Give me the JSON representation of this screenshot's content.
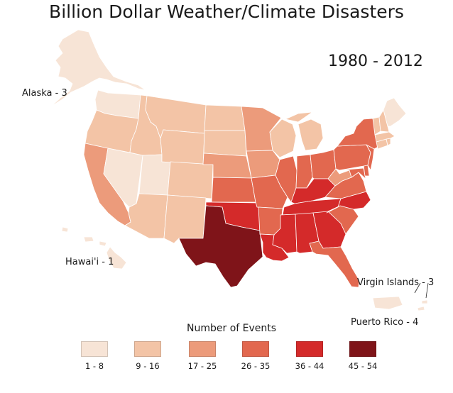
{
  "title": "Billion Dollar Weather/Climate Disasters",
  "period": "1980 - 2012",
  "callouts": {
    "alaska": "Alaska - 3",
    "hawaii": "Hawai'i - 1",
    "virgin_islands": "Virgin Islands - 3",
    "puerto_rico": "Puerto Rico - 4"
  },
  "legend": {
    "title": "Number of Events",
    "bins": [
      {
        "label": "1 - 8",
        "color": "#f7e4d6"
      },
      {
        "label": "9 - 16",
        "color": "#f3c4a6"
      },
      {
        "label": "17 - 25",
        "color": "#ec9b7b"
      },
      {
        "label": "26 - 35",
        "color": "#e2684f"
      },
      {
        "label": "36 - 44",
        "color": "#d42a2a"
      },
      {
        "label": "45 - 54",
        "color": "#7f1419"
      }
    ]
  },
  "state_bins": {
    "WA": 0,
    "OR": 1,
    "CA": 2,
    "NV": 0,
    "UT": 0,
    "ID": 1,
    "MT": 1,
    "WY": 1,
    "CO": 1,
    "AZ": 1,
    "NM": 1,
    "ND": 1,
    "SD": 1,
    "NE": 2,
    "KS": 3,
    "OK": 4,
    "TX": 5,
    "MN": 2,
    "IA": 2,
    "MO": 3,
    "AR": 3,
    "LA": 4,
    "WI": 1,
    "IL": 3,
    "MI": 1,
    "IN": 3,
    "OH": 3,
    "KY": 4,
    "TN": 4,
    "MS": 4,
    "AL": 4,
    "GA": 4,
    "FL": 3,
    "SC": 3,
    "NC": 4,
    "VA": 3,
    "WV": 2,
    "PA": 3,
    "NY": 3,
    "ME": 0,
    "NH": 1,
    "VT": 1,
    "MA": 1,
    "RI": 1,
    "CT": 1,
    "NJ": 3,
    "DE": 3,
    "MD": 3,
    "AK": 0,
    "HI": 0,
    "PR": 0,
    "VI": 0
  }
}
